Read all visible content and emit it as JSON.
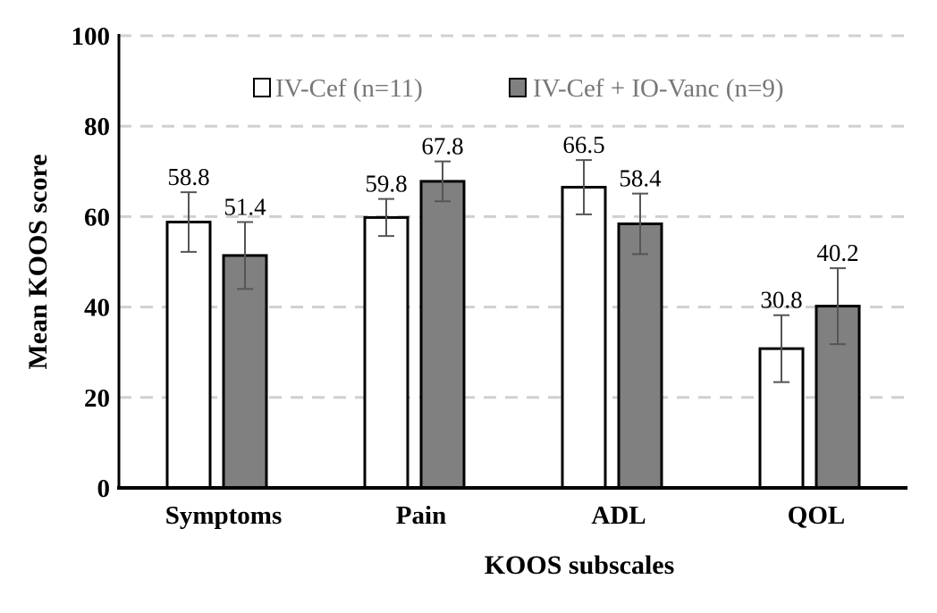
{
  "chart_data": {
    "type": "bar",
    "xlabel": "KOOS subscales",
    "ylabel": "Mean KOOS score",
    "ylim": [
      0,
      100
    ],
    "yticks": [
      0,
      20,
      40,
      60,
      80,
      100
    ],
    "grid": true,
    "legend_position": "top",
    "categories": [
      "Symptoms",
      "Pain",
      "ADL",
      "QOL"
    ],
    "series": [
      {
        "name": "IV-Cef (n=11)",
        "color": "#ffffff",
        "values": [
          58.8,
          59.8,
          66.5,
          30.8
        ],
        "errors": [
          6.6,
          4.1,
          6.0,
          7.4
        ],
        "labels": [
          "58.8",
          "59.8",
          "66.5",
          "30.8"
        ]
      },
      {
        "name": "IV-Cef + IO-Vanc (n=9)",
        "color": "#808080",
        "values": [
          51.4,
          67.8,
          58.4,
          40.2
        ],
        "errors": [
          7.4,
          4.4,
          6.7,
          8.4
        ],
        "labels": [
          "51.4",
          "67.8",
          "58.4",
          "40.2"
        ]
      }
    ]
  }
}
